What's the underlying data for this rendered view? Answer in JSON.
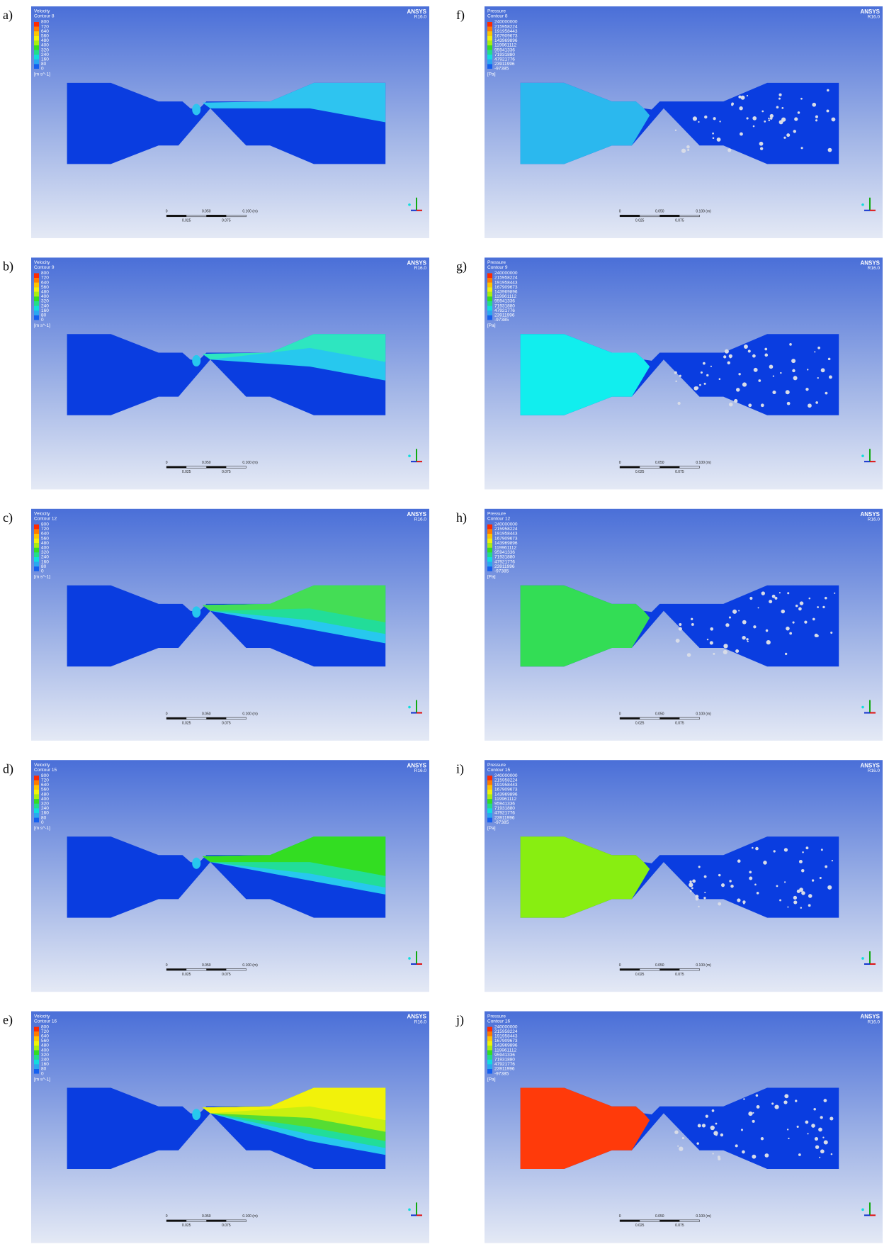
{
  "logo": "ANSYS",
  "version": "R16.0",
  "scale_labels": {
    "top": [
      "0",
      "0.050",
      "0.100 (m)"
    ],
    "bottom": [
      "0.025",
      "0.075"
    ]
  },
  "columns": [
    {
      "title": "Velocity",
      "unit": "[m s^-1]",
      "levels": [
        "800",
        "720",
        "640",
        "560",
        "480",
        "400",
        "320",
        "240",
        "160",
        "80",
        "0"
      ],
      "panels": [
        {
          "label": "a)",
          "contour": "Contour 8"
        },
        {
          "label": "b)",
          "contour": "Contour 9"
        },
        {
          "label": "c)",
          "contour": "Contour 12"
        },
        {
          "label": "d)",
          "contour": "Contour 15"
        },
        {
          "label": "e)",
          "contour": "Contour 16"
        }
      ]
    },
    {
      "title": "Pressure",
      "unit": "[Pa]",
      "levels": [
        "240000000",
        "215958224",
        "191958443",
        "167909673",
        "143969896",
        "119961112",
        "95941336",
        "71931880",
        "47921776",
        "23911996",
        "-97385"
      ],
      "panels": [
        {
          "label": "f)",
          "contour": "Contour 8"
        },
        {
          "label": "g)",
          "contour": "Contour 9"
        },
        {
          "label": "h)",
          "contour": "Contour 12"
        },
        {
          "label": "i)",
          "contour": "Contour 15"
        },
        {
          "label": "j)",
          "contour": "Contour 16"
        }
      ]
    }
  ]
}
